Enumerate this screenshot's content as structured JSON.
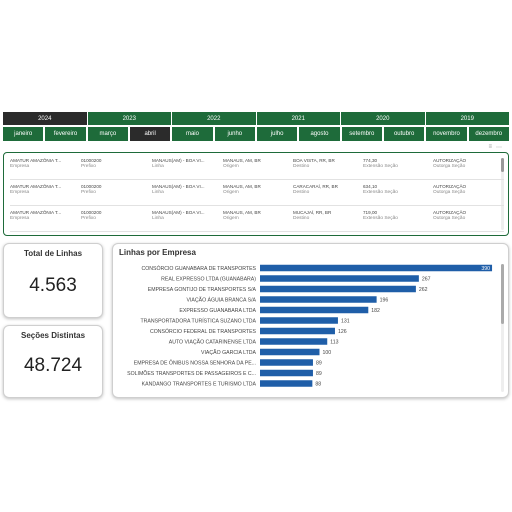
{
  "filters": {
    "years": [
      {
        "label": "2024",
        "active": true
      },
      {
        "label": "2023",
        "active": false
      },
      {
        "label": "2022",
        "active": false
      },
      {
        "label": "2021",
        "active": false
      },
      {
        "label": "2020",
        "active": false
      },
      {
        "label": "2019",
        "active": false
      }
    ],
    "months": [
      {
        "label": "janeiro",
        "active": false
      },
      {
        "label": "fevereiro",
        "active": false
      },
      {
        "label": "março",
        "active": false
      },
      {
        "label": "abril",
        "active": true
      },
      {
        "label": "maio",
        "active": false
      },
      {
        "label": "junho",
        "active": false
      },
      {
        "label": "julho",
        "active": false
      },
      {
        "label": "agosto",
        "active": false
      },
      {
        "label": "setembro",
        "active": false
      },
      {
        "label": "outubro",
        "active": false
      },
      {
        "label": "novembro",
        "active": false
      },
      {
        "label": "dezembro",
        "active": false
      }
    ]
  },
  "records": {
    "labels": {
      "empresa": "Empresa",
      "prefixo": "Prefixo",
      "linha": "Linha",
      "origem": "Origem",
      "destino": "Destino",
      "extensao": "Extensão Seção",
      "outorga": "Outorga Seção"
    },
    "rows": [
      {
        "empresa": "AMATUR AMAZÔNIA T...",
        "prefixo": "01000200",
        "linha": "MANAUS(AM) - BOA VI...",
        "origem": "MANAUS, AM, BR",
        "destino": "BOA VISTA, RR, BR",
        "extensao": "774,30",
        "outorga": "AUTORIZAÇÃO"
      },
      {
        "empresa": "AMATUR AMAZÔNIA T...",
        "prefixo": "01000200",
        "linha": "MANAUS(AM) - BOA VI...",
        "origem": "MANAUS, AM, BR",
        "destino": "CARACARAÍ, RR, BR",
        "extensao": "634,10",
        "outorga": "AUTORIZAÇÃO"
      },
      {
        "empresa": "AMATUR AMAZÔNIA T...",
        "prefixo": "01000200",
        "linha": "MANAUS(AM) - BOA VI...",
        "origem": "MANAUS, AM, BR",
        "destino": "MUCAJAÍ, RR, BR",
        "extensao": "719,00",
        "outorga": "AUTORIZAÇÃO"
      }
    ]
  },
  "kpis": [
    {
      "title": "Total de Linhas",
      "value": "4.563"
    },
    {
      "title": "Seções Distintas",
      "value": "48.724"
    }
  ],
  "chart_data": {
    "type": "bar",
    "orientation": "horizontal",
    "title": "Linhas por Empresa",
    "categories": [
      "CONSÓRCIO GUANABARA DE TRANSPORTES",
      "REAL EXPRESSO LTDA (GUANABARA)",
      "EMPRESA GONTIJO DE TRANSPORTES S/A",
      "VIAÇÃO ÁGUIA BRANCA S/A",
      "EXPRESSO GUANABARA LTDA",
      "TRANSPORTADORA TURÍSTICA SUZANO LTDA",
      "CONSÓRCIO FEDERAL DE TRANSPORTES",
      "AUTO VIAÇÃO CATARINENSE LTDA",
      "VIAÇÃO GARCIA LTDA",
      "EMPRESA DE ÔNIBUS NOSSA SENHORA DA PE...",
      "SOLIMÕES TRANSPORTES DE PASSAGEIROS E C...",
      "KANDANGO TRANSPORTES E TURISMO LTDA"
    ],
    "values": [
      390,
      267,
      262,
      196,
      182,
      131,
      126,
      113,
      100,
      89,
      89,
      88
    ],
    "xlim": [
      0,
      400
    ],
    "bar_color": "#1f5ea8",
    "grid": false,
    "legend": "none"
  },
  "colors": {
    "accent_green": "#1e6b3a",
    "active_dark": "#2b2b2b",
    "bar_blue": "#1f5ea8"
  }
}
